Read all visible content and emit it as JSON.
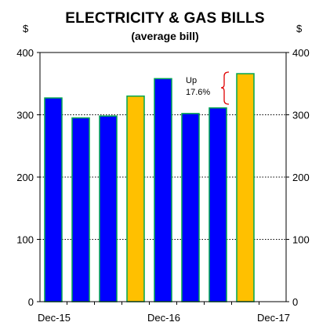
{
  "chart_data": {
    "type": "bar",
    "title": "ELECTRICITY & GAS BILLS",
    "subtitle": "(average bill)",
    "y_unit_left": "$",
    "y_unit_right": "$",
    "ylim": [
      0,
      400
    ],
    "yticks": [
      0,
      100,
      200,
      300,
      400
    ],
    "grid": "horizontal dotted",
    "x_tick_labels": [
      "Dec-15",
      "Dec-16",
      "Dec-17"
    ],
    "bars": [
      {
        "value": 327,
        "color": "#0000ff"
      },
      {
        "value": 295,
        "color": "#0000ff"
      },
      {
        "value": 298,
        "color": "#0000ff"
      },
      {
        "value": 330,
        "color": "#ffc000"
      },
      {
        "value": 358,
        "color": "#0000ff"
      },
      {
        "value": 302,
        "color": "#0000ff"
      },
      {
        "value": 311,
        "color": "#0000ff"
      },
      {
        "value": 366,
        "color": "#ffc000"
      }
    ],
    "annotation": {
      "line1": "Up",
      "line2": "17.6%"
    },
    "colors": {
      "bar_edge": "#00a651",
      "bracket": "#e00000",
      "grid": "#000000"
    }
  }
}
